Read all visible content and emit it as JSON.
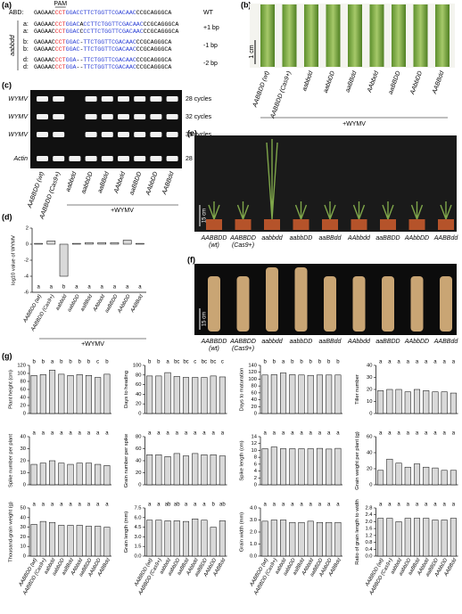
{
  "panels": {
    "a": {
      "label": "(a)",
      "pam": "PAM",
      "group": "aabbdd",
      "seq_colors": {
        "k": "#000000",
        "r": "#e8262a",
        "b": "#2b3fd6"
      },
      "rows": [
        {
          "label": "ABD:",
          "parts": [
            [
              "GAGAAC",
              "k"
            ],
            [
              "CCT",
              "r"
            ],
            [
              "GGACCTTCTGGTTCGACAAC",
              "b"
            ],
            [
              "CCGCAGGGCA",
              "k"
            ]
          ],
          "note": "WT"
        },
        {
          "label": "a:",
          "parts": [
            [
              "GAGAAC",
              "k"
            ],
            [
              "CCT",
              "r"
            ],
            [
              "GGAC",
              "b"
            ],
            [
              "A",
              "k"
            ],
            [
              "CCTTCTGGTTCGACAAC",
              "b"
            ],
            [
              "CCGCAGGGCA",
              "k"
            ]
          ],
          "note": "+1 bp"
        },
        {
          "label": "a:",
          "parts": [
            [
              "GAGAAC",
              "k"
            ],
            [
              "CCT",
              "r"
            ],
            [
              "GGAC",
              "b"
            ],
            [
              "C",
              "k"
            ],
            [
              "CCTTCTGGTTCGACAAC",
              "b"
            ],
            [
              "CCGCAGGGCA",
              "k"
            ]
          ]
        },
        {
          "label": "b:",
          "parts": [
            [
              "GAGAAC",
              "k"
            ],
            [
              "CCT",
              "r"
            ],
            [
              "GGAC",
              "b"
            ],
            [
              "-",
              "k"
            ],
            [
              "TTCTGGTTCGACAAC",
              "b"
            ],
            [
              "CCGCAGGGCA",
              "k"
            ]
          ],
          "note": "-1 bp"
        },
        {
          "label": "b:",
          "parts": [
            [
              "GAGAAC",
              "k"
            ],
            [
              "CCT",
              "r"
            ],
            [
              "GGAC",
              "b"
            ],
            [
              "-",
              "k"
            ],
            [
              "TTCTGGTTCGACAAC",
              "b"
            ],
            [
              "CCGCAGGGCA",
              "k"
            ]
          ]
        },
        {
          "label": "d:",
          "parts": [
            [
              "GAGAAC",
              "k"
            ],
            [
              "CCT",
              "r"
            ],
            [
              "GGA",
              "b"
            ],
            [
              "--",
              "k"
            ],
            [
              "TTCTGGTTCGACAAC",
              "b"
            ],
            [
              "CCGCAGGGCA",
              "k"
            ]
          ],
          "note": "-2 bp"
        },
        {
          "label": "d:",
          "parts": [
            [
              "GAGAAC",
              "k"
            ],
            [
              "CCT",
              "r"
            ],
            [
              "GGA",
              "b"
            ],
            [
              "--",
              "k"
            ],
            [
              "TTCTGGTTCGACAAC",
              "b"
            ],
            [
              "CCGCAGGGCA",
              "k"
            ]
          ]
        }
      ]
    },
    "b": {
      "label": "(b)",
      "scale": "1 cm",
      "treatment": "+WYMV",
      "lanes": [
        "AABBDD (wt)",
        "AABBDD (Cas9+)",
        "aabbdd",
        "aabbDD",
        "aaBBdd",
        "AAbbdd",
        "aaBBDD",
        "AAbbDD",
        "AABBdd"
      ]
    },
    "c": {
      "label": "(c)",
      "treatment": "+WYMV",
      "rows": [
        {
          "gene": "WYMV",
          "cycles": "28 cycles"
        },
        {
          "gene": "WYMV",
          "cycles": "32 cycles"
        },
        {
          "gene": "WYMV",
          "cycles": "35 cycles"
        },
        {
          "gene": "Actin",
          "cycles": "28 cycles"
        }
      ],
      "lanes": [
        "AABBDD (wt)",
        "AABBDD (Cas9+)",
        "aabbdd",
        "aabbDD",
        "aaBBdd",
        "AAbbdd",
        "aaBBDD",
        "AAbbDD",
        "AABBdd"
      ]
    },
    "d": {
      "label": "(d)"
    },
    "e": {
      "label": "(e)",
      "scale": "15 cm",
      "lanes": [
        {
          "name": "AABBDD",
          "sub": "(wt)"
        },
        {
          "name": "AABBDD",
          "sub": "(Cas9+)"
        },
        {
          "name": "aabbdd"
        },
        {
          "name": "aabbDD"
        },
        {
          "name": "aaBBdd"
        },
        {
          "name": "AAbbdd"
        },
        {
          "name": "aaBBDD"
        },
        {
          "name": "AAbbDD"
        },
        {
          "name": "AABBdd"
        }
      ]
    },
    "f": {
      "label": "(f)",
      "scale": "15 cm",
      "lanes": [
        {
          "name": "AABBDD",
          "sub": "(wt)"
        },
        {
          "name": "AABBDD",
          "sub": "(Cas9+)"
        },
        {
          "name": "aabbdd"
        },
        {
          "name": "aabbDD"
        },
        {
          "name": "aaBBdd"
        },
        {
          "name": "AAbbdd"
        },
        {
          "name": "aaBBDD"
        },
        {
          "name": "AAbbDD"
        },
        {
          "name": "AABBdd"
        }
      ]
    },
    "g": {
      "label": "(g)"
    }
  },
  "chart_data": [
    {
      "type": "bar",
      "ylabel": "log10 value of WYMV",
      "xlabel": "+WYMV",
      "color": "#d9d9d9",
      "categories": [
        "AABBDD (wt)",
        "AABBDD (Cas9+)",
        "aabbdd",
        "aabbDD",
        "aaBBdd",
        "AAbbdd",
        "aaBBDD",
        "AAbbDD",
        "AABBdd"
      ],
      "values": [
        0.1,
        0.4,
        -4,
        0.1,
        0.2,
        0.2,
        0.2,
        0.5,
        0.1
      ],
      "letters": [
        "a",
        "a",
        "b",
        "a",
        "a",
        "a",
        "a",
        "a",
        "a"
      ],
      "ylim": [
        -6,
        2
      ],
      "yticks": [
        -6,
        -4,
        -2,
        0,
        2
      ]
    },
    {
      "type": "bar",
      "ylabel": "Plant height (cm)",
      "color": "#d9d9d9",
      "values": [
        95,
        97,
        108,
        98,
        95,
        97,
        95,
        90,
        98
      ],
      "letters": [
        "b",
        "b",
        "a",
        "b",
        "b",
        "b",
        "b",
        "c",
        "b"
      ],
      "ylim": [
        0,
        120
      ],
      "yticks": [
        0,
        20,
        40,
        60,
        80,
        100,
        120
      ]
    },
    {
      "type": "bar",
      "ylabel": "Days to heading",
      "color": "#d9d9d9",
      "values": [
        78,
        78,
        85,
        77,
        75,
        75,
        75,
        78,
        76
      ],
      "letters": [
        "b",
        "b",
        "a",
        "bc",
        "bc",
        "c",
        "bc",
        "bc",
        "c"
      ],
      "ylim": [
        0,
        100
      ],
      "yticks": [
        0,
        20,
        40,
        60,
        80,
        100
      ]
    },
    {
      "type": "bar",
      "ylabel": "Days to maturation",
      "color": "#d9d9d9",
      "values": [
        112,
        113,
        118,
        113,
        112,
        111,
        112,
        112,
        112
      ],
      "letters": [
        "b",
        "b",
        "a",
        "b",
        "b",
        "b",
        "b",
        "b",
        "b"
      ],
      "ylim": [
        0,
        140
      ],
      "yticks": [
        0,
        20,
        40,
        60,
        80,
        100,
        120,
        140
      ]
    },
    {
      "type": "bar",
      "ylabel": "Tiller number",
      "color": "#d9d9d9",
      "values": [
        19,
        20,
        20,
        18,
        20,
        19,
        18,
        18,
        17
      ],
      "letters": [
        "a",
        "a",
        "a",
        "a",
        "a",
        "a",
        "a",
        "a",
        "a"
      ],
      "ylim": [
        0,
        40
      ],
      "yticks": [
        0,
        10,
        20,
        30,
        40
      ]
    },
    {
      "type": "bar",
      "ylabel": "Spike number per plant",
      "color": "#d9d9d9",
      "values": [
        17,
        18,
        20,
        18,
        17,
        18,
        18,
        17,
        16
      ],
      "letters": [
        "a",
        "a",
        "a",
        "a",
        "a",
        "a",
        "a",
        "a",
        "a"
      ],
      "ylim": [
        0,
        40
      ],
      "yticks": [
        0,
        10,
        20,
        30,
        40
      ]
    },
    {
      "type": "bar",
      "ylabel": "Grain number per spike",
      "color": "#d9d9d9",
      "values": [
        50,
        50,
        47,
        52,
        48,
        52,
        50,
        50,
        48
      ],
      "letters": [
        "a",
        "a",
        "a",
        "a",
        "a",
        "a",
        "a",
        "a",
        "a"
      ],
      "ylim": [
        0,
        80
      ],
      "yticks": [
        0,
        20,
        40,
        60,
        80
      ]
    },
    {
      "type": "bar",
      "ylabel": "Spike length (cm)",
      "color": "#d9d9d9",
      "values": [
        10.5,
        11,
        10.5,
        10.5,
        10.5,
        10.5,
        10.6,
        10.4,
        10.6
      ],
      "letters": [
        "a",
        "a",
        "a",
        "a",
        "a",
        "a",
        "a",
        "a",
        "a"
      ],
      "ylim": [
        0,
        14
      ],
      "yticks": [
        0,
        2,
        4,
        6,
        8,
        10,
        12,
        14
      ]
    },
    {
      "type": "bar",
      "ylabel": "Grain weight per plant (g)",
      "color": "#d9d9d9",
      "values": [
        18,
        32,
        27,
        22,
        26,
        22,
        21,
        18,
        18
      ],
      "letters": [
        "a",
        "a",
        "a",
        "a",
        "a",
        "a",
        "a",
        "a",
        "a"
      ],
      "ylim": [
        0,
        60
      ],
      "yticks": [
        0,
        20,
        40,
        60
      ]
    },
    {
      "type": "bar",
      "ylabel": "Thousand-grain weight (g)",
      "color": "#d9d9d9",
      "categories": [
        "AABBDD (wt)",
        "AABBDD (Cas9+)",
        "aabbdd",
        "aabbDD",
        "aaBBdd",
        "AAbbdd",
        "aaBBDD",
        "AAbbDD",
        "AABBdd"
      ],
      "values": [
        33,
        36,
        35,
        32,
        32,
        32,
        31,
        31,
        30
      ],
      "letters": [
        "a",
        "a",
        "a",
        "a",
        "a",
        "a",
        "a",
        "a",
        "a"
      ],
      "ylim": [
        0,
        50
      ],
      "yticks": [
        0,
        10,
        20,
        30,
        40,
        50
      ]
    },
    {
      "type": "bar",
      "ylabel": "Grain length (mm)",
      "color": "#d9d9d9",
      "categories": [
        "AABBDD (wt)",
        "AABBDD (Cas9+)",
        "aabbdd",
        "aabbDD",
        "aaBBdd",
        "AAbbdd",
        "aaBBDD",
        "AAbbDD",
        "AABBdd"
      ],
      "values": [
        5.6,
        5.6,
        5.5,
        5.5,
        5.4,
        5.8,
        5.6,
        4.5,
        5.5
      ],
      "letters": [
        "a",
        "a",
        "ab",
        "ab",
        "a",
        "a",
        "a",
        "b",
        "ab"
      ],
      "ylim": [
        0,
        7.5
      ],
      "yticks": [
        {
          "value": 0,
          "label": "0.0"
        },
        1.5,
        {
          "value": 3,
          "label": "3.0"
        },
        4.5,
        {
          "value": 6,
          "label": "6.0"
        },
        7.5
      ]
    },
    {
      "type": "bar",
      "ylabel": "Grain width (mm)",
      "color": "#d9d9d9",
      "categories": [
        "AABBDD (wt)",
        "AABBDD (Cas9+)",
        "aabbdd",
        "aabbDD",
        "aaBBdd",
        "AAbbdd",
        "aaBBDD",
        "AAbbDD",
        "AABBdd"
      ],
      "values": [
        2.9,
        3.0,
        3.0,
        2.8,
        2.8,
        2.9,
        2.8,
        2.8,
        2.8
      ],
      "letters": [
        "a",
        "a",
        "a",
        "a",
        "a",
        "a",
        "a",
        "a",
        "a"
      ],
      "ylim": [
        0,
        4
      ],
      "yticks": [
        {
          "value": 0,
          "label": "0.0"
        },
        {
          "value": 1,
          "label": "1.0"
        },
        {
          "value": 2,
          "label": "2.0"
        },
        {
          "value": 3,
          "label": "3.0"
        },
        {
          "value": 4,
          "label": "4.0"
        }
      ]
    },
    {
      "type": "bar",
      "ylabel": "Ratio of grain length to width",
      "color": "#d9d9d9",
      "categories": [
        "AABBDD (wt)",
        "AABBDD (Cas9+)",
        "aabbdd",
        "aabbDD",
        "aaBBdd",
        "AAbbdd",
        "aaBBDD",
        "AAbbDD",
        "AABBdd"
      ],
      "values": [
        2.2,
        2.2,
        2.0,
        2.2,
        2.2,
        2.2,
        2.1,
        2.1,
        2.2
      ],
      "letters": [
        "a",
        "a",
        "a",
        "a",
        "a",
        "a",
        "a",
        "a",
        "a"
      ],
      "ylim": [
        0,
        2.8
      ],
      "yticks": [
        {
          "value": 0,
          "label": "0.0"
        },
        0.4,
        0.8,
        1.2,
        1.6,
        {
          "value": 2,
          "label": "2.0"
        },
        2.4,
        2.8
      ]
    }
  ]
}
